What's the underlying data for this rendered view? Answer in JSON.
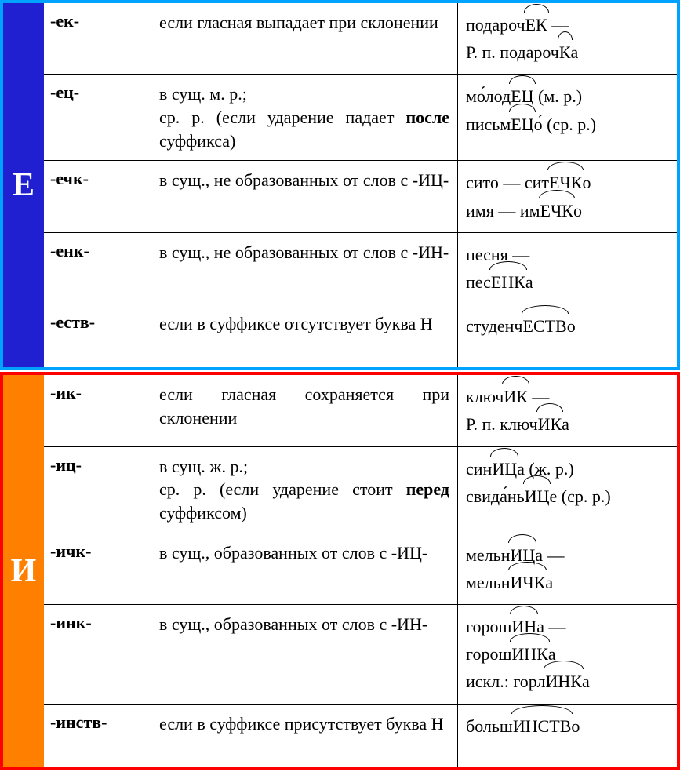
{
  "sections": [
    {
      "letter": "Е",
      "letter_bg": "#2020d0",
      "border": "#00a2ff",
      "rows": [
        {
          "suffix": "-ек-",
          "rule": "если гласная выпадает при склонении",
          "ex": [
            "подароч<arc>ЕК</arc> —",
            "Р. п. подароч<arc>К</arc>а"
          ]
        },
        {
          "suffix": "-ец-",
          "rule": "в сущ. м. р.;<br>ср. р. (если ударение падает <b>после</b> суффикса)",
          "ex": [
            "мо́лод<arc>ЕЦ</arc> (м. р.)",
            "письм<arc>ЕЦ</arc>о́ (ср. р.)"
          ]
        },
        {
          "suffix": "-ечк-",
          "rule": "в сущ., не образованных от слов с -ИЦ-",
          "ex": [
            "сито — сит<arc>ЕЧК</arc>о",
            "имя — им<arc>ЕЧК</arc>о"
          ]
        },
        {
          "suffix": "-енк-",
          "rule": "в сущ., не образованных от слов с -ИН-",
          "ex": [
            "песня —",
            "пес<arc>ЕНК</arc>а"
          ]
        },
        {
          "suffix": "-еств-",
          "rule": "если в суффиксе отсутствует буква Н",
          "ex": [
            "студенч<arc>ЕСТВ</arc>о"
          ]
        }
      ]
    },
    {
      "letter": "И",
      "letter_bg": "#ff7f00",
      "border": "#ff0000",
      "rows": [
        {
          "suffix": "-ик-",
          "rule": "если гласная сохраняется при склонении",
          "ex": [
            "ключ<arc>ИК</arc> —",
            "Р. п. ключ<arc>ИК</arc>а"
          ]
        },
        {
          "suffix": "-иц-",
          "rule": "в сущ. ж. р.;<br>ср. р. (если ударение стоит <b>перед</b> суффиксом)",
          "ex": [
            "син<arc>ИЦ</arc>а (ж. р.)",
            "свида́нь<arc>ИЦ</arc>е (ср. р.)"
          ]
        },
        {
          "suffix": "-ичк-",
          "rule": "в сущ., образованных от слов с -ИЦ-",
          "ex": [
            "мельн<arc>ИЦ</arc>а —",
            "мельн<arc>ИЧК</arc>а"
          ]
        },
        {
          "suffix": "-инк-",
          "rule": "в сущ., образованных от слов с -ИН-",
          "ex": [
            "горош<arc>ИН</arc>а —",
            "горош<arc>ИНК</arc>а",
            "искл.: горл<arc>ИНК</arc>а"
          ]
        },
        {
          "suffix": "-инств-",
          "rule": "если в суффиксе присутствует буква Н",
          "ex": [
            "больш<arc>ИНСТВ</arc>о"
          ]
        }
      ]
    }
  ]
}
